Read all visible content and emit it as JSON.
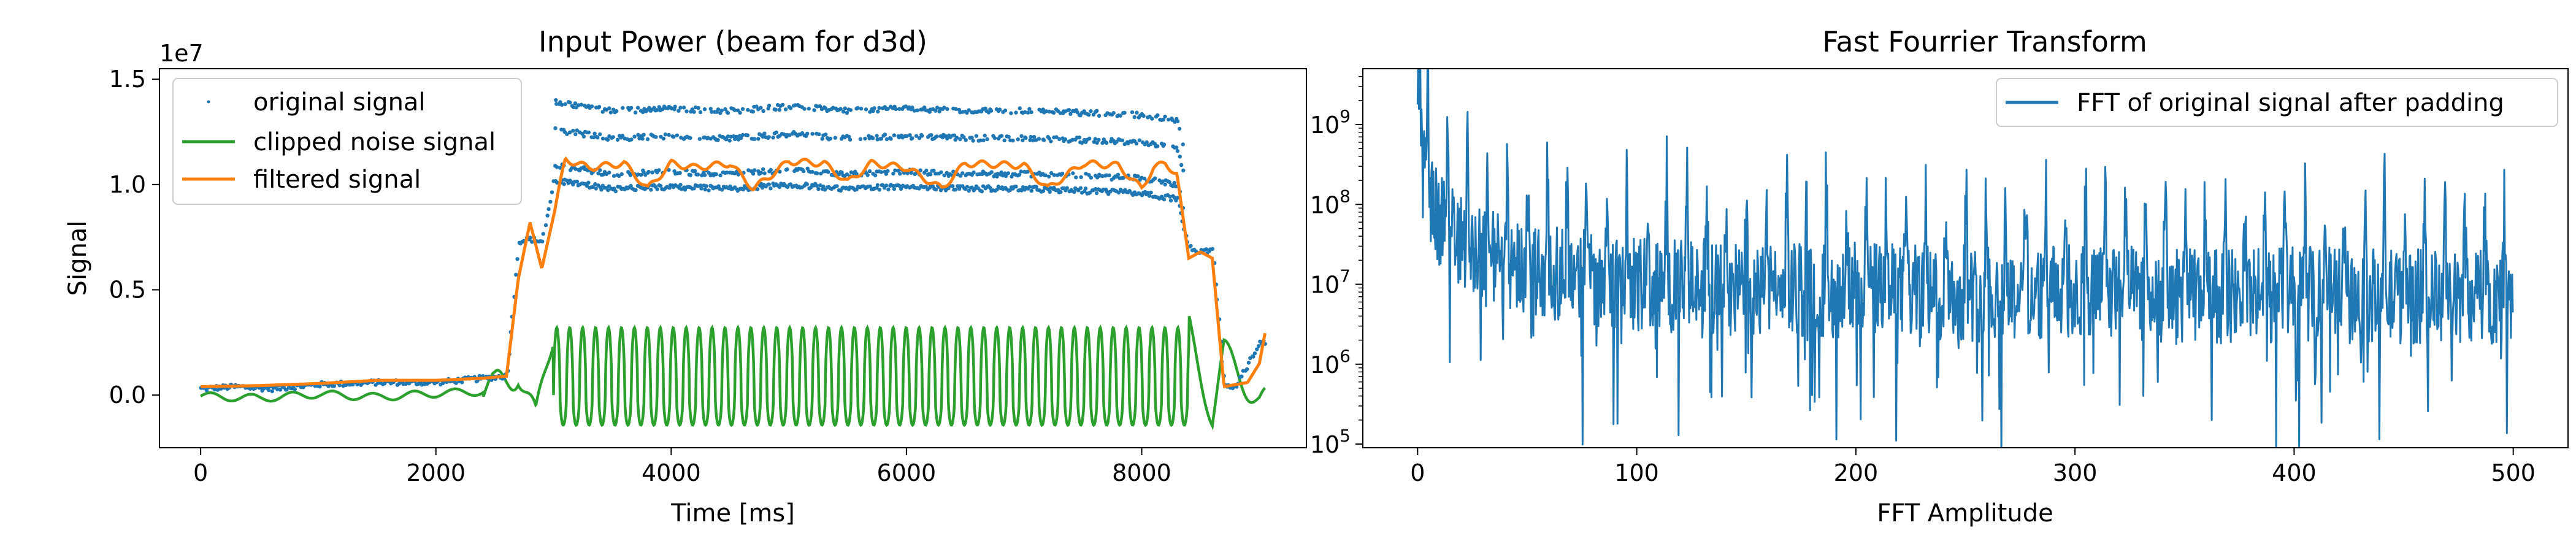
{
  "chart_data": [
    {
      "type": "line",
      "title": "Input Power (beam for d3d)",
      "xlabel": "Time [ms]",
      "ylabel": "Signal",
      "y_offset_text": "1e7",
      "xlim": [
        -350,
        9400
      ],
      "ylim": [
        -2500000,
        15500000
      ],
      "xticks": [
        0,
        2000,
        4000,
        6000,
        8000
      ],
      "xtick_labels": [
        "0",
        "2000",
        "4000",
        "6000",
        "8000"
      ],
      "yticks": [
        0,
        5000000,
        10000000,
        15000000
      ],
      "ytick_labels": [
        "0.0",
        "0.5",
        "1.0",
        "1.5"
      ],
      "grid": false,
      "legend_position": "top-left",
      "series": [
        {
          "name": "original signal",
          "style": "dots",
          "color": "#1f77b4",
          "x": [
            0,
            300,
            600,
            1000,
            1500,
            2000,
            2400,
            2600,
            2700,
            2800,
            2900,
            3000,
            3500,
            4000,
            4500,
            5000,
            5500,
            6000,
            6500,
            7000,
            7500,
            8000,
            8300,
            8400,
            8500,
            8600,
            8700,
            8800,
            9000
          ],
          "y": [
            300000,
            400000,
            300000,
            500000,
            600000,
            600000,
            800000,
            900000,
            7300000,
            7400000,
            7300000,
            10200000,
            9800000,
            9900000,
            9800000,
            10000000,
            9800000,
            9900000,
            9800000,
            9800000,
            9700000,
            9600000,
            9300000,
            7000000,
            6800000,
            6900000,
            400000,
            400000,
            2500000
          ]
        },
        {
          "name": "clipped noise signal",
          "style": "oscillation",
          "color": "#2ca02c",
          "t_start": 3000,
          "t_end": 8400,
          "period_ms": 110,
          "peak": 3200000,
          "trough": -1500000,
          "x": [
            0,
            500,
            1000,
            1500,
            2000,
            2500,
            2700,
            2850,
            3000,
            8400,
            8600,
            8700,
            9000
          ],
          "y": [
            -50000,
            -150000,
            50000,
            -100000,
            80000,
            200000,
            1300000,
            -1400000,
            3200000,
            3200000,
            -1000000,
            2000000,
            -300000
          ]
        },
        {
          "name": "filtered signal",
          "style": "line",
          "color": "#ff7f0e",
          "x": [
            0,
            500,
            1000,
            1500,
            2000,
            2400,
            2600,
            2700,
            2800,
            2900,
            3000,
            3100,
            3300,
            3600,
            3800,
            4000,
            4200,
            4500,
            4700,
            5000,
            5300,
            5500,
            5700,
            6000,
            6300,
            6500,
            7000,
            7200,
            7500,
            7800,
            8000,
            8100,
            8200,
            8300,
            8400,
            8500,
            8600,
            8700,
            8800,
            8900,
            9000,
            9050
          ],
          "y": [
            400000,
            450000,
            550000,
            700000,
            700000,
            800000,
            900000,
            5500000,
            8200000,
            6000000,
            8500000,
            11200000,
            10800000,
            11000000,
            9800000,
            11000000,
            10800000,
            11000000,
            9800000,
            11100000,
            11000000,
            10100000,
            11000000,
            10800000,
            9800000,
            11000000,
            10900000,
            9800000,
            11000000,
            10900000,
            9800000,
            10800000,
            11000000,
            10500000,
            6500000,
            6800000,
            6500000,
            400000,
            500000,
            600000,
            1500000,
            3000000
          ]
        }
      ]
    },
    {
      "type": "line",
      "title": "Fast Fourrier Transform",
      "xlabel": "FFT Amplitude",
      "ylabel": "",
      "yscale": "log",
      "xlim": [
        -25,
        525
      ],
      "ylim": [
        90000,
        5000000000
      ],
      "xticks": [
        0,
        100,
        200,
        300,
        400,
        500
      ],
      "xtick_labels": [
        "0",
        "100",
        "200",
        "300",
        "400",
        "500"
      ],
      "yticks": [
        100000,
        1000000,
        10000000,
        100000000,
        1000000000
      ],
      "ytick_base": [
        "10",
        "10",
        "10",
        "10",
        "10"
      ],
      "ytick_exp": [
        "5",
        "6",
        "7",
        "8",
        "9"
      ],
      "grid": false,
      "legend_position": "top-right",
      "series": [
        {
          "name": "FFT of original signal after padding",
          "color": "#1f77b4",
          "x": [
            0,
            2,
            5,
            10,
            20,
            30,
            50,
            75,
            100,
            150,
            200,
            250,
            300,
            350,
            400,
            450,
            500
          ],
          "y": [
            5000000000,
            400000000,
            150000000,
            60000000,
            35000000,
            25000000,
            15000000,
            12000000,
            10000000,
            8000000,
            8500000,
            7500000,
            8000000,
            7000000,
            7500000,
            7000000,
            7000000
          ],
          "peak_spacing": 9.1,
          "spread_decades": 0.6
        }
      ]
    }
  ]
}
